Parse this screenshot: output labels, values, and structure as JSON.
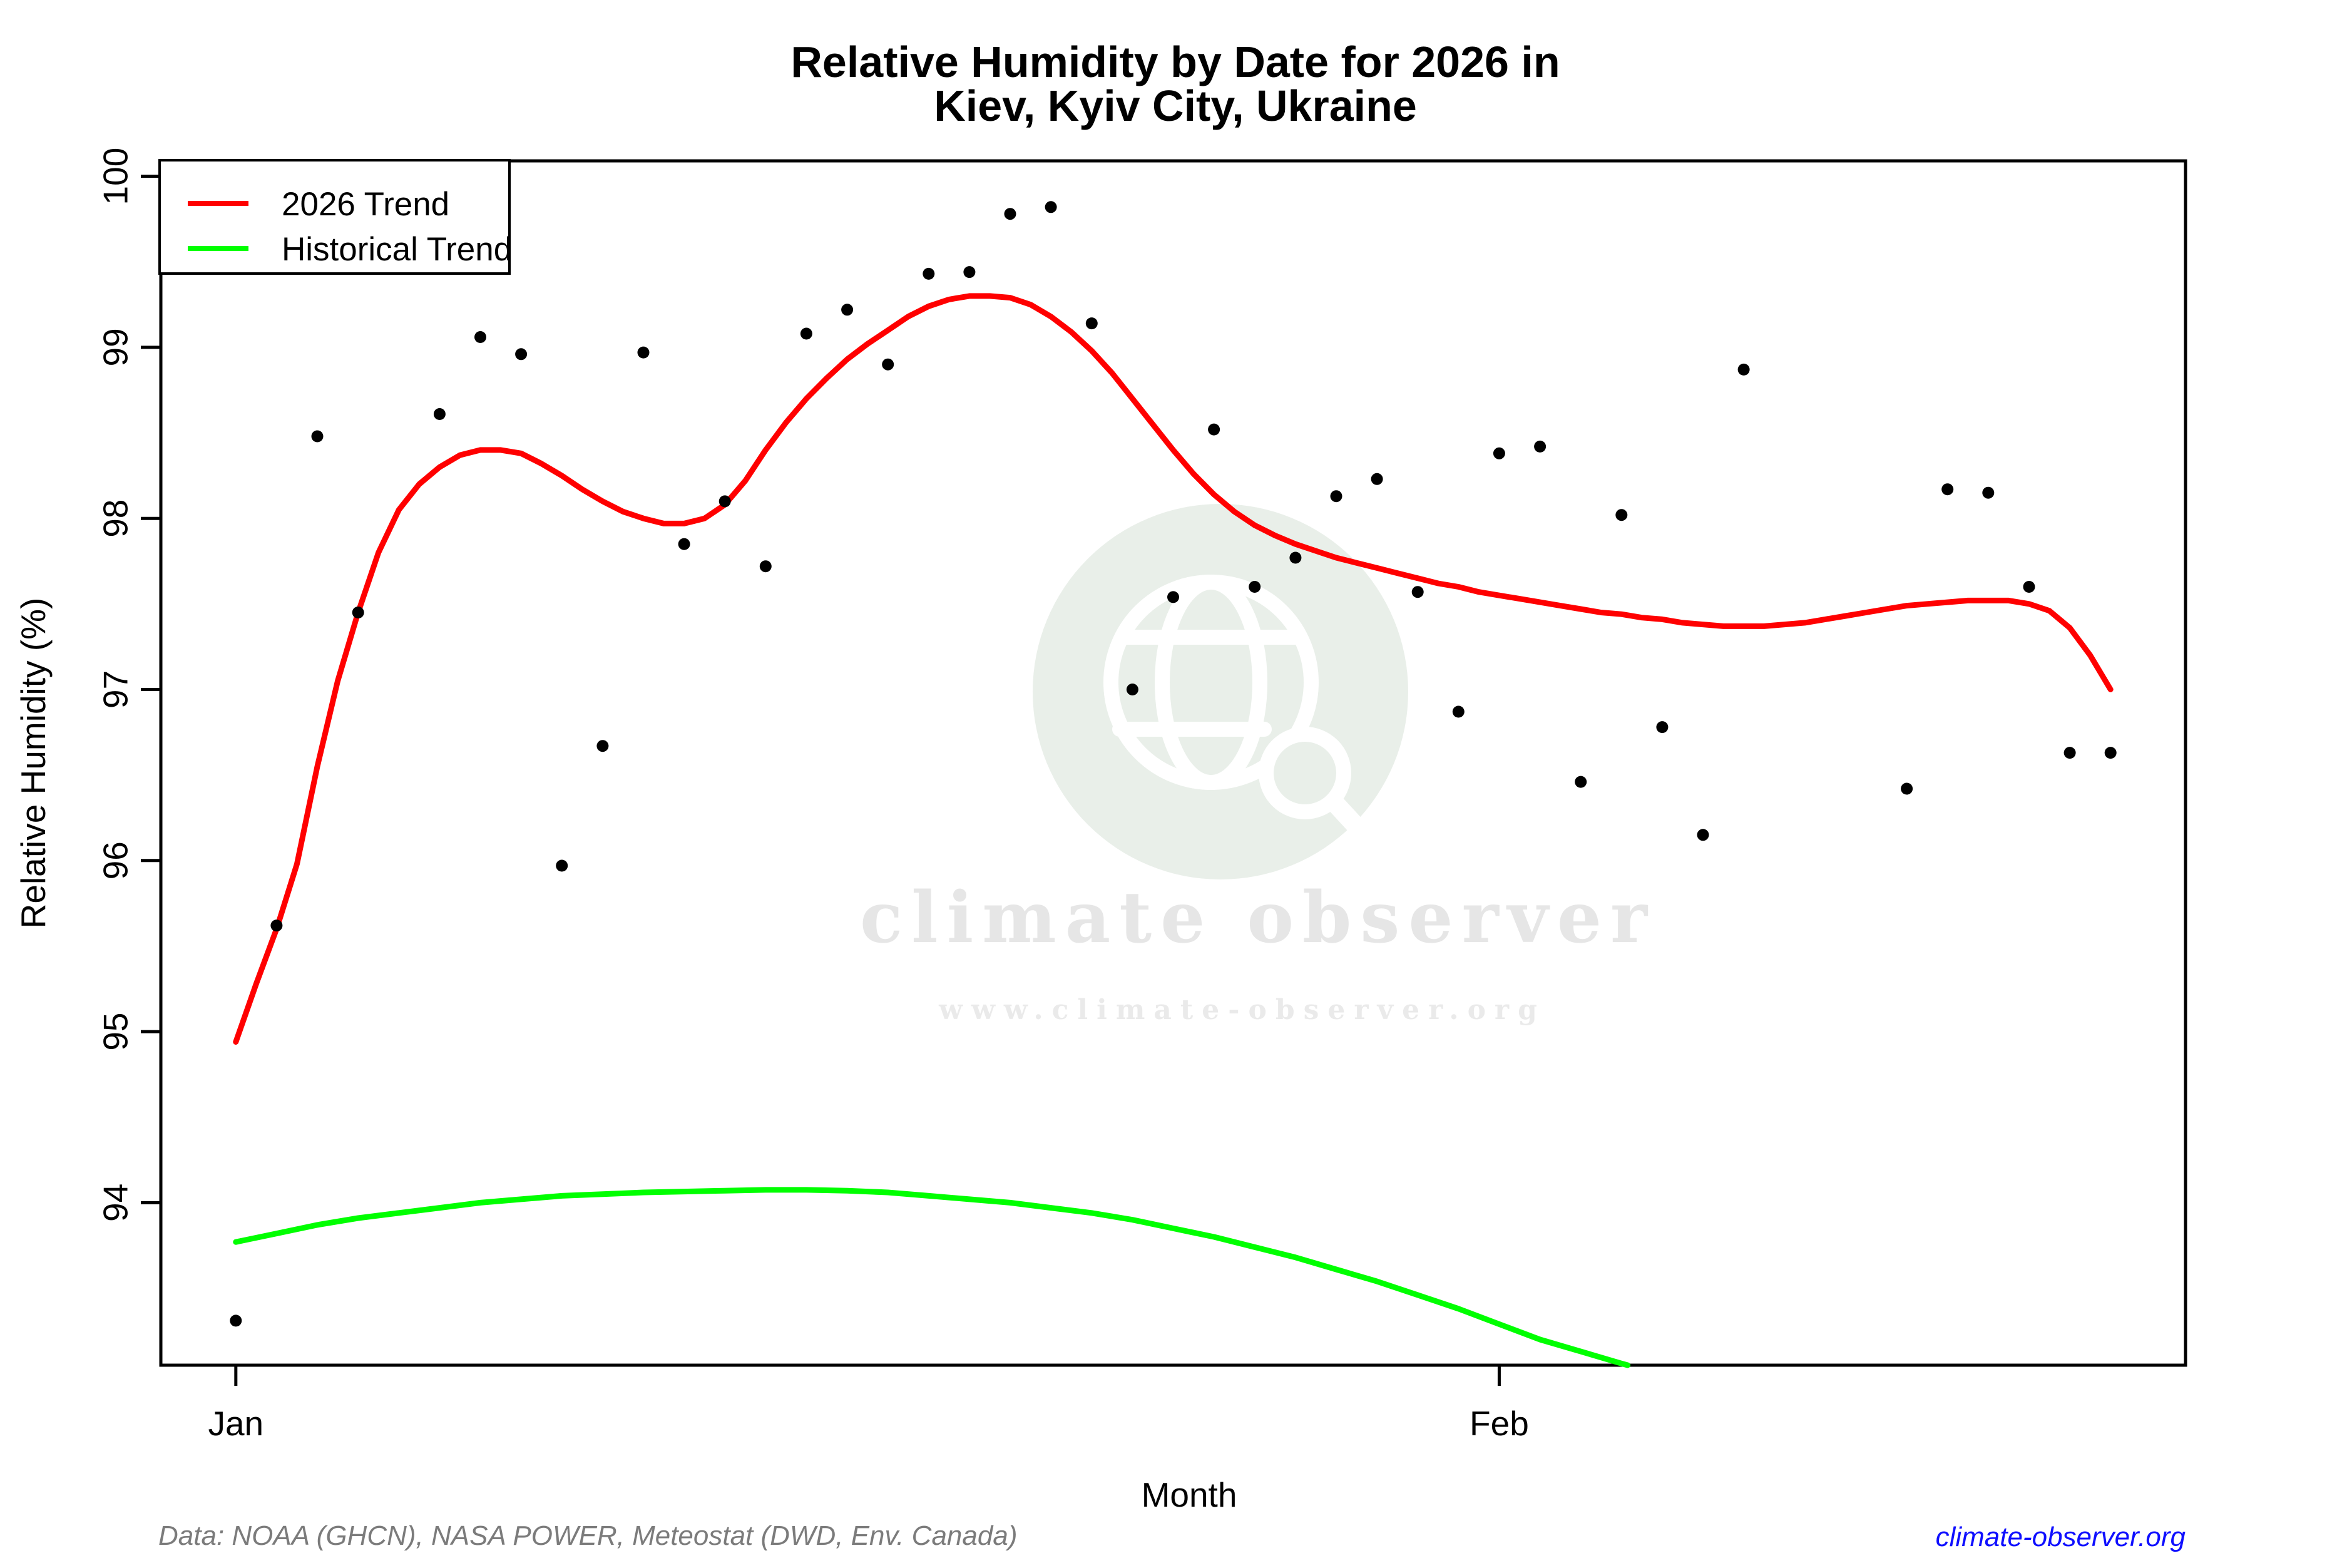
{
  "title": {
    "line1": "Relative Humidity by Date for 2026 in",
    "line2": "Kiev, Kyiv City, Ukraine"
  },
  "legend": {
    "items": [
      {
        "label": "2026 Trend",
        "color": "#ff0000"
      },
      {
        "label": "Historical Trend",
        "color": "#00ff00"
      }
    ]
  },
  "watermark": {
    "big_text": "climate observer",
    "url_text": "www.climate-observer.org",
    "circle_color": "#e9efe9",
    "icon": "globe-magnifier-icon"
  },
  "footer": {
    "data_note": "Data: NOAA (GHCN), NASA POWER, Meteostat (DWD, Env. Canada)",
    "site_link": "climate-observer.org"
  },
  "chart_data": {
    "type": "scatter",
    "title": "Relative Humidity by Date for 2026 in Kiev, Kyiv City, Ukraine",
    "xlabel": "Month",
    "ylabel": "Relative Humidity (%)",
    "grid": "off",
    "legend_position": "top-left",
    "point_color": "#000000",
    "x_axis": {
      "lim": [
        -0.84,
        48.84
      ],
      "ticks": [
        {
          "label": "Jan",
          "day": 1
        },
        {
          "label": "Feb",
          "day": 32
        }
      ]
    },
    "y_axis": {
      "lim": [
        93.05,
        100.09
      ],
      "ticks": [
        94,
        95,
        96,
        97,
        98,
        99,
        100
      ]
    },
    "points": [
      {
        "date": "Jan 1",
        "day": 1,
        "value": 93.31
      },
      {
        "date": "Jan 2",
        "day": 2,
        "value": 95.62
      },
      {
        "date": "Jan 3",
        "day": 3,
        "value": 98.48
      },
      {
        "date": "Jan 4",
        "day": 4,
        "value": 97.45
      },
      {
        "date": "Jan 6",
        "day": 6,
        "value": 98.61
      },
      {
        "date": "Jan 7",
        "day": 7,
        "value": 99.06
      },
      {
        "date": "Jan 8",
        "day": 8,
        "value": 98.96
      },
      {
        "date": "Jan 9",
        "day": 9,
        "value": 95.97
      },
      {
        "date": "Jan 10",
        "day": 10,
        "value": 96.67
      },
      {
        "date": "Jan 11",
        "day": 11,
        "value": 98.97
      },
      {
        "date": "Jan 12",
        "day": 12,
        "value": 97.85
      },
      {
        "date": "Jan 13",
        "day": 13,
        "value": 98.1
      },
      {
        "date": "Jan 14",
        "day": 14,
        "value": 97.72
      },
      {
        "date": "Jan 15",
        "day": 15,
        "value": 99.08
      },
      {
        "date": "Jan 16",
        "day": 16,
        "value": 99.22
      },
      {
        "date": "Jan 17",
        "day": 17,
        "value": 98.9
      },
      {
        "date": "Jan 18",
        "day": 18,
        "value": 99.43
      },
      {
        "date": "Jan 19",
        "day": 19,
        "value": 99.44
      },
      {
        "date": "Jan 20",
        "day": 20,
        "value": 99.78
      },
      {
        "date": "Jan 21",
        "day": 21,
        "value": 99.82
      },
      {
        "date": "Jan 22",
        "day": 22,
        "value": 99.14
      },
      {
        "date": "Jan 23",
        "day": 23,
        "value": 97.0
      },
      {
        "date": "Jan 24",
        "day": 24,
        "value": 97.54
      },
      {
        "date": "Jan 25",
        "day": 25,
        "value": 98.52
      },
      {
        "date": "Jan 26",
        "day": 26,
        "value": 97.6
      },
      {
        "date": "Jan 27",
        "day": 27,
        "value": 97.77
      },
      {
        "date": "Jan 28",
        "day": 28,
        "value": 98.13
      },
      {
        "date": "Jan 29",
        "day": 29,
        "value": 98.23
      },
      {
        "date": "Jan 30",
        "day": 30,
        "value": 97.57
      },
      {
        "date": "Jan 31",
        "day": 31,
        "value": 96.87
      },
      {
        "date": "Feb 1",
        "day": 32,
        "value": 98.38
      },
      {
        "date": "Feb 2",
        "day": 33,
        "value": 98.42
      },
      {
        "date": "Feb 3",
        "day": 34,
        "value": 96.46
      },
      {
        "date": "Feb 4",
        "day": 35,
        "value": 98.02
      },
      {
        "date": "Feb 5",
        "day": 36,
        "value": 96.78
      },
      {
        "date": "Feb 6",
        "day": 37,
        "value": 96.15
      },
      {
        "date": "Feb 7",
        "day": 38,
        "value": 98.87
      },
      {
        "date": "Feb 11",
        "day": 42,
        "value": 96.42
      },
      {
        "date": "Feb 12",
        "day": 43,
        "value": 98.17
      },
      {
        "date": "Feb 13",
        "day": 44,
        "value": 98.15
      },
      {
        "date": "Feb 14",
        "day": 45,
        "value": 97.6
      },
      {
        "date": "Feb 15",
        "day": 46,
        "value": 96.63
      },
      {
        "date": "Feb 16",
        "day": 47,
        "value": 96.63
      }
    ],
    "series": [
      {
        "name": "2026 Trend",
        "color": "#ff0000",
        "points": [
          [
            1,
            94.94
          ],
          [
            1.5,
            95.28
          ],
          [
            2,
            95.6
          ],
          [
            2.5,
            95.98
          ],
          [
            3,
            96.55
          ],
          [
            3.5,
            97.05
          ],
          [
            4,
            97.45
          ],
          [
            4.5,
            97.8
          ],
          [
            5,
            98.05
          ],
          [
            5.5,
            98.2
          ],
          [
            6,
            98.3
          ],
          [
            6.5,
            98.37
          ],
          [
            7,
            98.4
          ],
          [
            7.5,
            98.4
          ],
          [
            8,
            98.38
          ],
          [
            8.5,
            98.32
          ],
          [
            9,
            98.25
          ],
          [
            9.5,
            98.17
          ],
          [
            10,
            98.1
          ],
          [
            10.5,
            98.04
          ],
          [
            11,
            98.0
          ],
          [
            11.5,
            97.97
          ],
          [
            12,
            97.97
          ],
          [
            12.5,
            98.0
          ],
          [
            13,
            98.08
          ],
          [
            13.5,
            98.22
          ],
          [
            14,
            98.4
          ],
          [
            14.5,
            98.56
          ],
          [
            15,
            98.7
          ],
          [
            15.5,
            98.82
          ],
          [
            16,
            98.93
          ],
          [
            16.5,
            99.02
          ],
          [
            17,
            99.1
          ],
          [
            17.5,
            99.18
          ],
          [
            18,
            99.24
          ],
          [
            18.5,
            99.28
          ],
          [
            19,
            99.3
          ],
          [
            19.5,
            99.3
          ],
          [
            20,
            99.29
          ],
          [
            20.5,
            99.25
          ],
          [
            21,
            99.18
          ],
          [
            21.5,
            99.09
          ],
          [
            22,
            98.98
          ],
          [
            22.5,
            98.85
          ],
          [
            23,
            98.7
          ],
          [
            23.5,
            98.55
          ],
          [
            24,
            98.4
          ],
          [
            24.5,
            98.26
          ],
          [
            25,
            98.14
          ],
          [
            25.5,
            98.04
          ],
          [
            26,
            97.96
          ],
          [
            26.5,
            97.9
          ],
          [
            27,
            97.85
          ],
          [
            27.5,
            97.81
          ],
          [
            28,
            97.77
          ],
          [
            28.5,
            97.74
          ],
          [
            29,
            97.71
          ],
          [
            29.5,
            97.68
          ],
          [
            30,
            97.65
          ],
          [
            30.5,
            97.62
          ],
          [
            31,
            97.6
          ],
          [
            31.5,
            97.57
          ],
          [
            32,
            97.55
          ],
          [
            32.5,
            97.53
          ],
          [
            33,
            97.51
          ],
          [
            33.5,
            97.49
          ],
          [
            34,
            97.47
          ],
          [
            34.5,
            97.45
          ],
          [
            35,
            97.44
          ],
          [
            35.5,
            97.42
          ],
          [
            36,
            97.41
          ],
          [
            36.5,
            97.39
          ],
          [
            37,
            97.38
          ],
          [
            37.5,
            97.37
          ],
          [
            38,
            97.37
          ],
          [
            38.5,
            97.37
          ],
          [
            39,
            97.38
          ],
          [
            39.5,
            97.39
          ],
          [
            40,
            97.41
          ],
          [
            40.5,
            97.43
          ],
          [
            41,
            97.45
          ],
          [
            41.5,
            97.47
          ],
          [
            42,
            97.49
          ],
          [
            42.5,
            97.5
          ],
          [
            43,
            97.51
          ],
          [
            43.5,
            97.52
          ],
          [
            44,
            97.52
          ],
          [
            44.5,
            97.52
          ],
          [
            45,
            97.5
          ],
          [
            45.5,
            97.46
          ],
          [
            46,
            97.36
          ],
          [
            46.5,
            97.2
          ],
          [
            47,
            97.0
          ]
        ]
      },
      {
        "name": "Historical Trend",
        "color": "#00ff00",
        "points": [
          [
            1,
            93.77
          ],
          [
            2,
            93.82
          ],
          [
            3,
            93.87
          ],
          [
            4,
            93.91
          ],
          [
            5,
            93.94
          ],
          [
            6,
            93.97
          ],
          [
            7,
            94.0
          ],
          [
            8,
            94.02
          ],
          [
            9,
            94.04
          ],
          [
            10,
            94.05
          ],
          [
            11,
            94.06
          ],
          [
            12,
            94.065
          ],
          [
            13,
            94.07
          ],
          [
            14,
            94.075
          ],
          [
            15,
            94.075
          ],
          [
            16,
            94.07
          ],
          [
            17,
            94.06
          ],
          [
            18,
            94.04
          ],
          [
            19,
            94.02
          ],
          [
            20,
            94.0
          ],
          [
            21,
            93.97
          ],
          [
            22,
            93.94
          ],
          [
            23,
            93.9
          ],
          [
            24,
            93.85
          ],
          [
            25,
            93.8
          ],
          [
            26,
            93.74
          ],
          [
            27,
            93.68
          ],
          [
            28,
            93.61
          ],
          [
            29,
            93.54
          ],
          [
            30,
            93.46
          ],
          [
            31,
            93.38
          ],
          [
            32,
            93.29
          ],
          [
            33,
            93.2
          ],
          [
            34,
            93.13
          ],
          [
            35,
            93.06
          ],
          [
            35.15,
            93.05
          ]
        ]
      }
    ]
  }
}
